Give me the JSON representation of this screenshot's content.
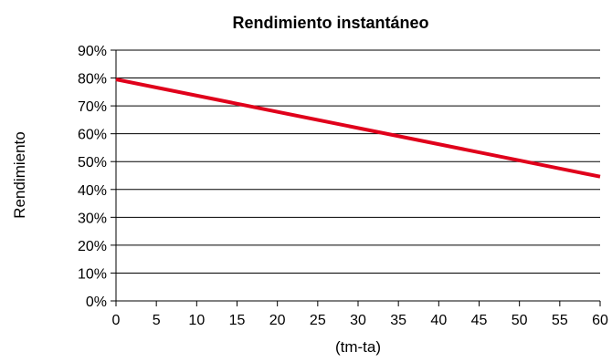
{
  "chart_data": {
    "type": "line",
    "title": "Rendimiento instantáneo",
    "xlabel": "(tm-ta)",
    "ylabel": "Rendimiento",
    "xlim": [
      0,
      60
    ],
    "ylim": [
      0,
      90
    ],
    "x_ticks": [
      "0",
      "5",
      "10",
      "15",
      "20",
      "25",
      "30",
      "35",
      "40",
      "45",
      "50",
      "55",
      "60"
    ],
    "y_ticks": [
      "0%",
      "10%",
      "20%",
      "30%",
      "40%",
      "50%",
      "60%",
      "70%",
      "80%",
      "90%"
    ],
    "grid": "horizontal",
    "legend": "none",
    "series": [
      {
        "color": "#e0001b",
        "x": [
          0,
          60
        ],
        "y": [
          79.5,
          44.6
        ]
      }
    ]
  }
}
